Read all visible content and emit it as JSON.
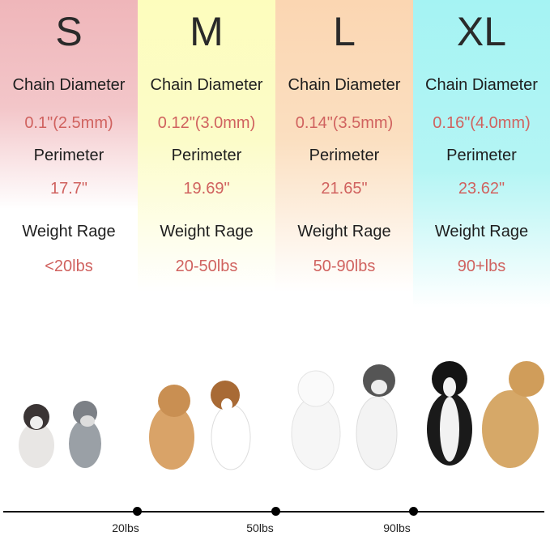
{
  "sizes": [
    {
      "size": "S",
      "chain_label": "Chain Diameter",
      "chain": "0.1\"(2.5mm)",
      "perimeter_label": "Perimeter",
      "perimeter": "17.7\"",
      "weight_label": "Weight Rage",
      "weight": "<20lbs",
      "color": "#efb6ba"
    },
    {
      "size": "M",
      "chain_label": "Chain Diameter",
      "chain": "0.12\"(3.0mm)",
      "perimeter_label": "Perimeter",
      "perimeter": "19.69\"",
      "weight_label": "Weight Rage",
      "weight": "20-50lbs",
      "color": "#fdfdbd"
    },
    {
      "size": "L",
      "chain_label": "Chain Diameter",
      "chain": "0.14\"(3.5mm)",
      "perimeter_label": "Perimeter",
      "perimeter": "21.65\"",
      "weight_label": "Weight Rage",
      "weight": "50-90lbs",
      "color": "#fbd6b2"
    },
    {
      "size": "XL",
      "chain_label": "Chain Diameter",
      "chain": "0.16\"(4.0mm)",
      "perimeter_label": "Perimeter",
      "perimeter": "23.62\"",
      "weight_label": "Weight Rage",
      "weight": "90+lbs",
      "color": "#a5f3f3"
    }
  ],
  "scale": {
    "ticks": [
      "20lbs",
      "50lbs",
      "90lbs"
    ]
  },
  "accent_text_color": "#d0625f"
}
